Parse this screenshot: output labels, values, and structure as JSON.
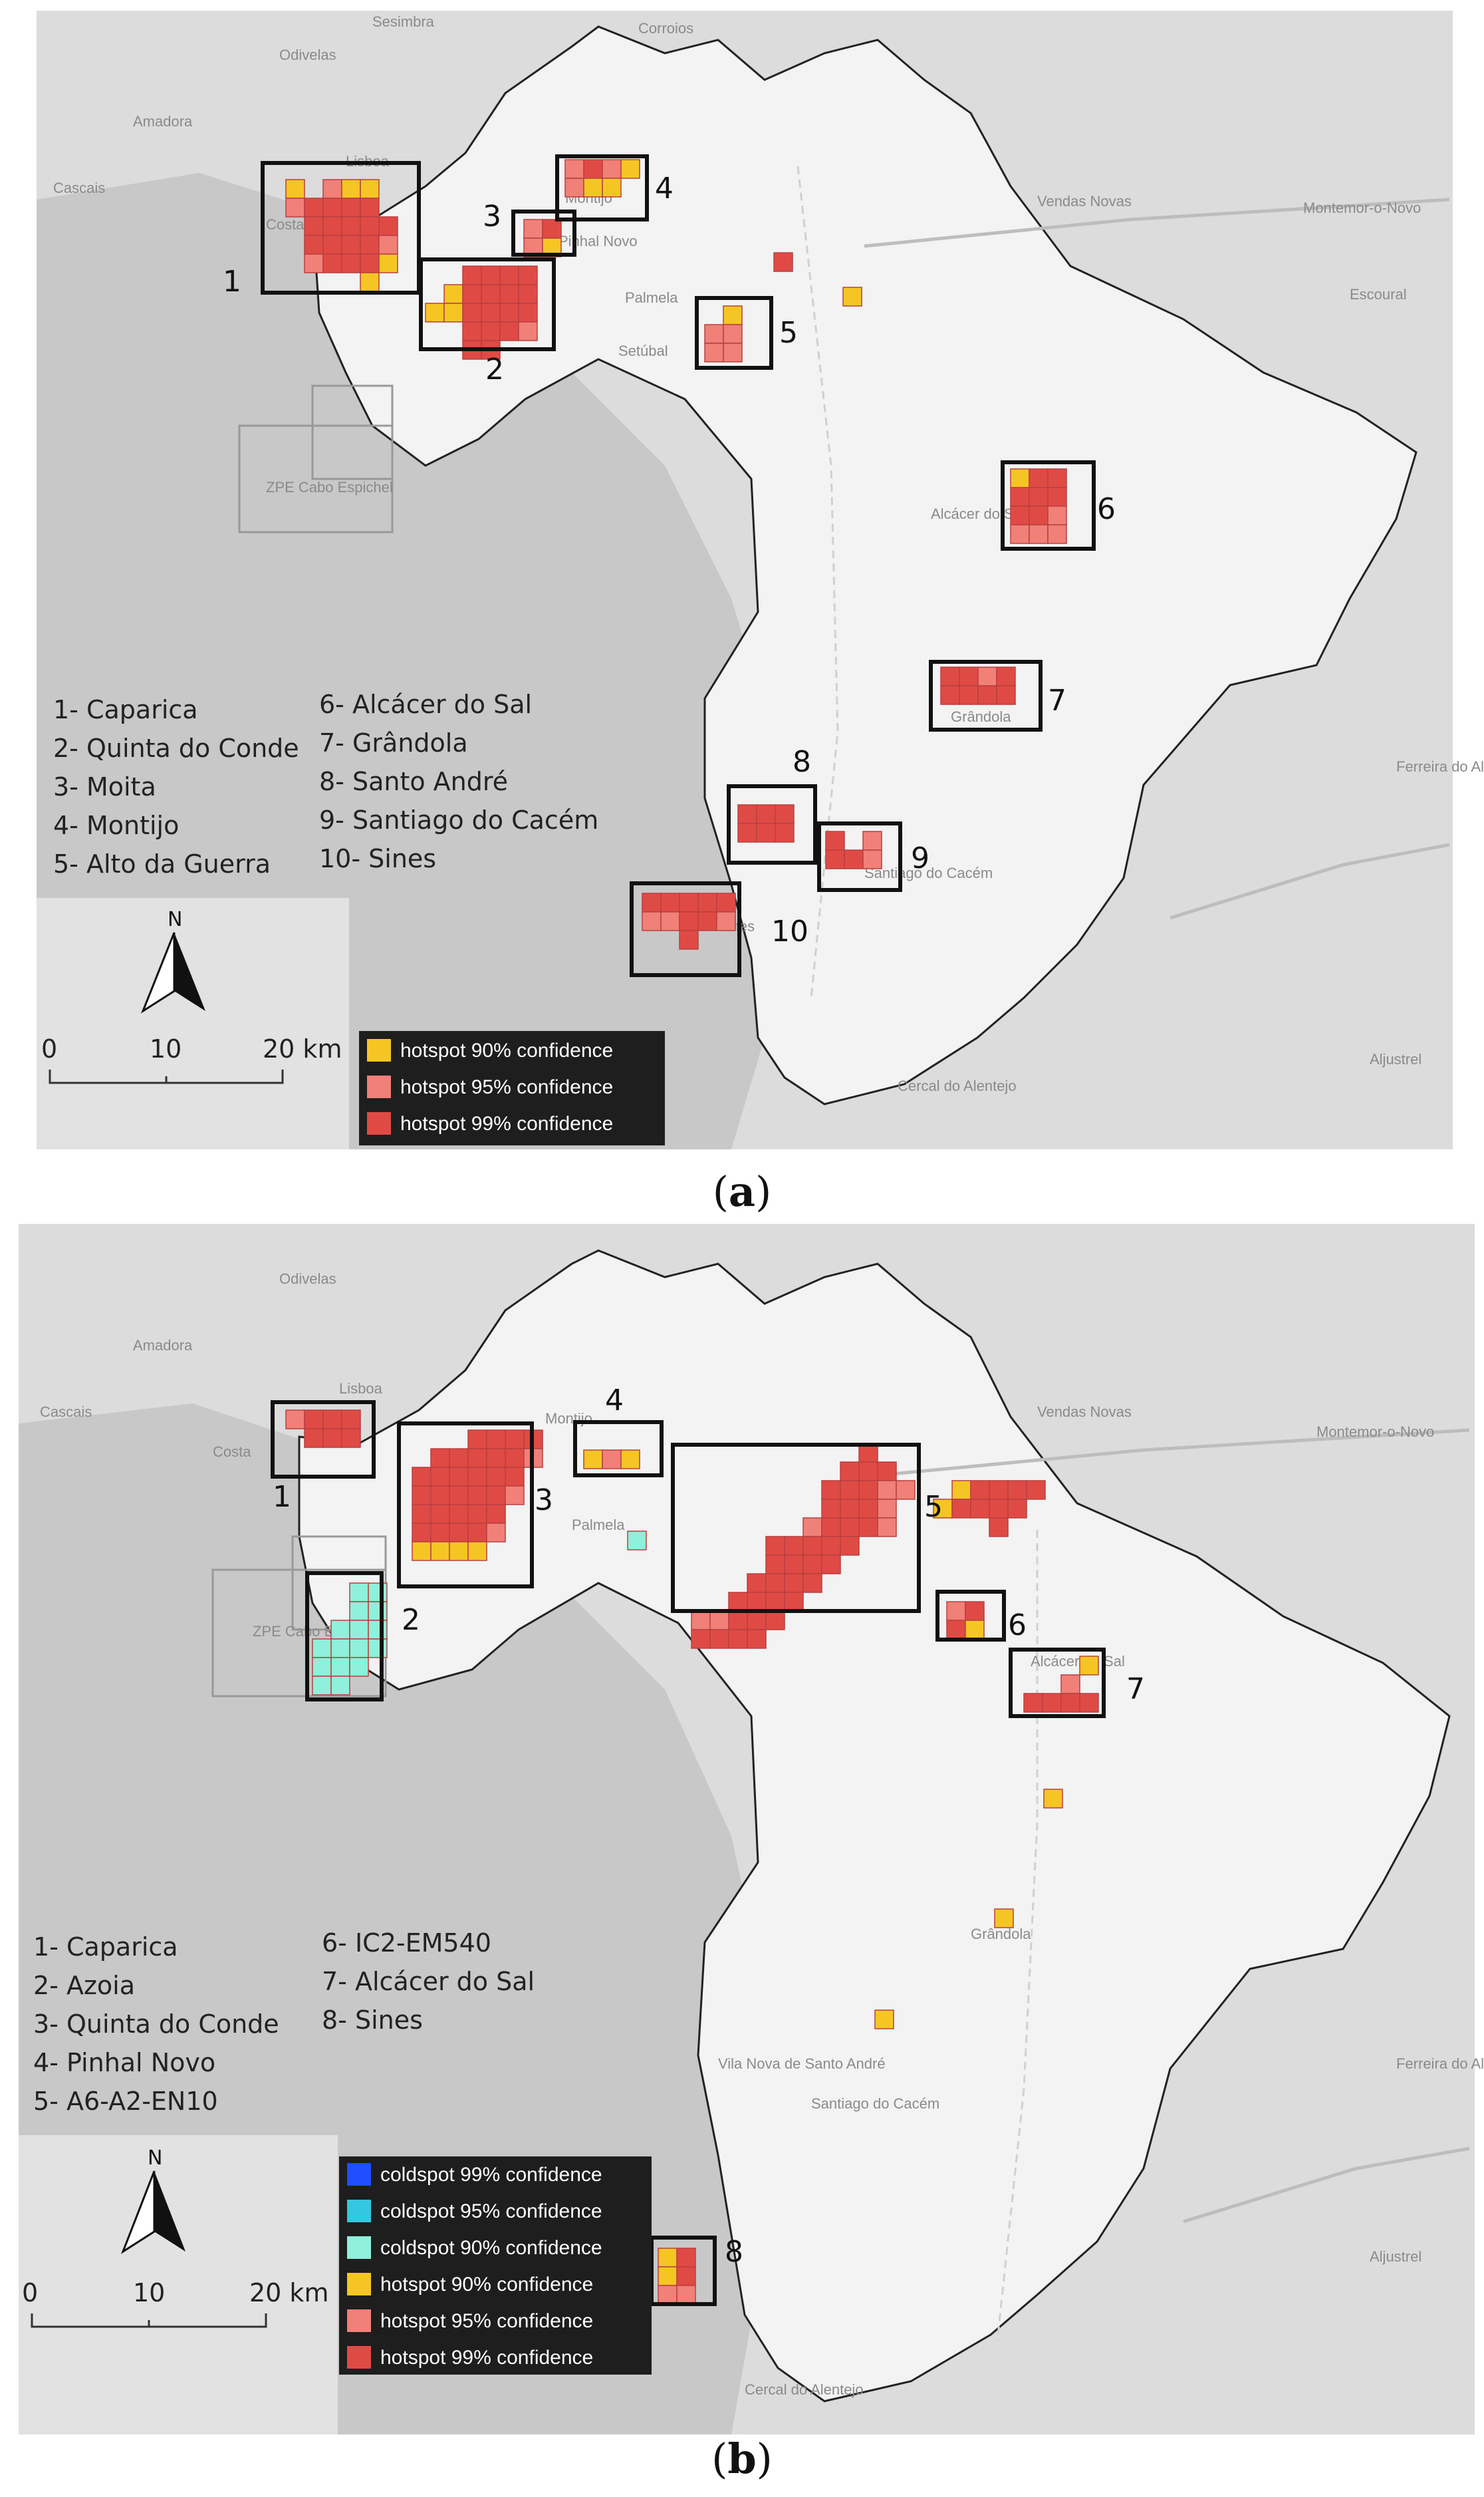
{
  "colors": {
    "hotspot90": "#f5c623",
    "hotspot95": "#f08078",
    "hotspot99": "#e04a45",
    "coldspot99": "#1f4fff",
    "coldspot95": "#33c7e0",
    "coldspot90": "#8ff0dc"
  },
  "panel_a": {
    "label_open": "(",
    "label_letter": "a",
    "label_close": ")",
    "places": [
      "Sesimbra",
      "Corroios",
      "Montijo",
      "Vendas Novas",
      "Montemor-o-Novo",
      "Escoural",
      "Setúbal",
      "Palmela",
      "Alcácer do Sal",
      "Grândola",
      "Sines",
      "Santiago do Cacém",
      "Ferreira do Alentejo",
      "Aljustrel",
      "Cercal do Alentejo",
      "Odivelas",
      "Amadora",
      "Lisboa",
      "Cascais",
      "Costa da Caparica",
      "Pinhal Novo",
      "ZPE Cabo Espichel"
    ],
    "boxes": [
      "1",
      "2",
      "3",
      "4",
      "5",
      "6",
      "7",
      "8",
      "9",
      "10"
    ],
    "list": [
      "1- Caparica",
      "2- Quinta do Conde",
      "3- Moita",
      "4- Montijo",
      "5- Alto da Guerra",
      "6- Alcácer do Sal",
      "7- Grândola",
      "8- Santo André",
      "9- Santiago do Cacém",
      "10- Sines"
    ],
    "scale": {
      "north": "N",
      "t0": "0",
      "t10": "10",
      "t20": "20 km"
    },
    "legend": [
      "hotspot 90% confidence",
      "hotspot 95% confidence",
      "hotspot 99% confidence"
    ]
  },
  "panel_b": {
    "label_open": "(",
    "label_letter": "b",
    "label_close": ")",
    "places": [
      "Amadora",
      "Lisboa",
      "Odivelas",
      "Cascais",
      "Costa",
      "Montijo",
      "Vendas Novas",
      "Montemor-o-Novo",
      "Palmela",
      "Alcácer do Sal",
      "Grândola",
      "Vila Nova de Santo André",
      "Santiago do Cacém",
      "Ferreira do Alentejo",
      "Aljustrel",
      "Cercal do Alentejo",
      "ZPE Cabo Espichel"
    ],
    "boxes": [
      "1",
      "2",
      "3",
      "4",
      "5",
      "6",
      "7",
      "8"
    ],
    "list": [
      "1- Caparica",
      "2- Azoia",
      "3- Quinta do Conde",
      "4- Pinhal Novo",
      "5- A6-A2-EN10",
      "6- IC2-EM540",
      "7- Alcácer do Sal",
      "8- Sines"
    ],
    "scale": {
      "north": "N",
      "t0": "0",
      "t10": "10",
      "t20": "20 km"
    },
    "legend": [
      "coldspot 99% confidence",
      "coldspot 95% confidence",
      "coldspot 90% confidence",
      "hotspot 90% confidence",
      "hotspot 95% confidence",
      "hotspot 99% confidence"
    ]
  }
}
